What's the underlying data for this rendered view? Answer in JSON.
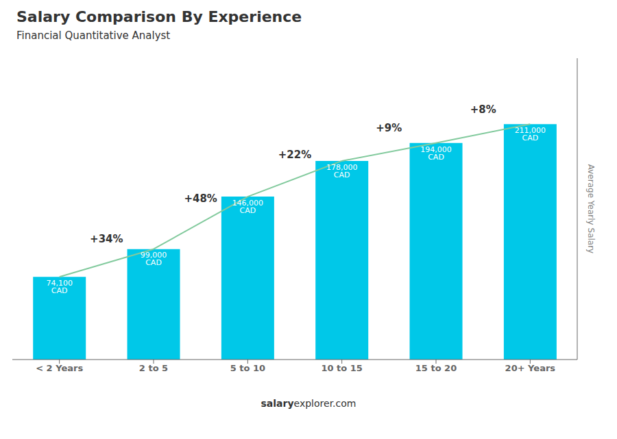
{
  "chart_data": {
    "type": "bar",
    "title": "Salary Comparison By Experience",
    "subtitle": "Financial Quantitative Analyst",
    "categories": [
      "< 2 Years",
      "2 to 5",
      "5 to 10",
      "10 to 15",
      "15 to 20",
      "20+ Years"
    ],
    "values": [
      74100,
      99000,
      146000,
      178000,
      194000,
      211000
    ],
    "value_labels": [
      "74,100 CAD",
      "99,000 CAD",
      "146,000 CAD",
      "178,000 CAD",
      "194,000 CAD",
      "211,000 CAD"
    ],
    "data_labels": true,
    "change_labels": [
      "+34%",
      "+48%",
      "+22%",
      "+9%",
      "+8%"
    ],
    "ylabel": "Average Yearly Salary",
    "footer": [
      "salary",
      "explorer.com"
    ],
    "color": "#00c8e8",
    "ylim": [
      0,
      270000
    ],
    "tick_labels": "x",
    "grid": false
  }
}
